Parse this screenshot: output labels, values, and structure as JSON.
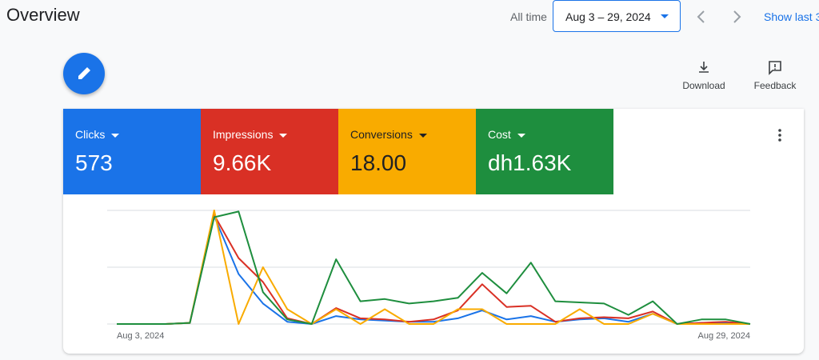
{
  "header": {
    "title": "Overview",
    "range_label": "All time",
    "date_range": "Aug 3 – 29, 2024",
    "show_last": "Show last 3"
  },
  "actions": {
    "download": "Download",
    "feedback": "Feedback"
  },
  "chart_data": {
    "type": "line",
    "categories": [
      "Aug 3, 2024",
      null,
      null,
      null,
      null,
      null,
      null,
      null,
      null,
      null,
      null,
      null,
      null,
      null,
      null,
      null,
      null,
      null,
      null,
      null,
      null,
      null,
      null,
      null,
      null,
      null,
      "Aug 29, 2024"
    ],
    "series": [
      {
        "name": "Clicks",
        "total": "573",
        "color": "#1a73e8",
        "values": [
          0,
          0,
          0,
          1,
          95,
          44,
          18,
          2,
          0,
          7,
          4,
          3,
          2,
          2,
          5,
          12,
          4,
          7,
          2,
          4,
          5,
          2,
          9,
          0,
          1,
          1,
          0
        ]
      },
      {
        "name": "Impressions",
        "total": "9.66K",
        "color": "#d93025",
        "values": [
          0,
          0,
          0,
          1,
          96,
          58,
          37,
          5,
          0,
          14,
          5,
          4,
          2,
          4,
          12,
          35,
          15,
          16,
          2,
          5,
          6,
          5,
          11,
          0,
          1,
          2,
          0
        ]
      },
      {
        "name": "Conversions",
        "total": "18.00",
        "color": "#f9ab00",
        "values": [
          0,
          0,
          0,
          1,
          100,
          0,
          50,
          13,
          0,
          13,
          0,
          13,
          0,
          0,
          13,
          13,
          0,
          0,
          0,
          13,
          0,
          0,
          9,
          0,
          0,
          0,
          0
        ]
      },
      {
        "name": "Cost",
        "total": "dh1.63K",
        "color": "#1e8e3e",
        "values": [
          0,
          0,
          0,
          1,
          94,
          99,
          28,
          4,
          0,
          57,
          20,
          22,
          18,
          20,
          23,
          45,
          27,
          54,
          20,
          19,
          18,
          8,
          20,
          0,
          4,
          4,
          0
        ]
      }
    ],
    "ylim": [
      0,
      100
    ],
    "yticks": [
      0,
      50,
      100
    ],
    "grid": true
  }
}
